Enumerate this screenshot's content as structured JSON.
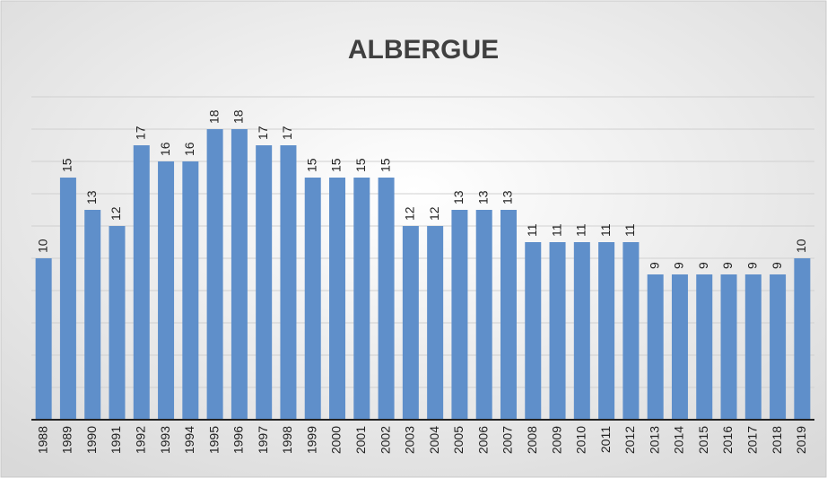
{
  "chart_data": {
    "type": "bar",
    "title": "ALBERGUE",
    "categories": [
      "1988",
      "1989",
      "1990",
      "1991",
      "1992",
      "1993",
      "1994",
      "1995",
      "1996",
      "1997",
      "1998",
      "1999",
      "2000",
      "2001",
      "2002",
      "2003",
      "2004",
      "2005",
      "2006",
      "2007",
      "2008",
      "2009",
      "2010",
      "2011",
      "2012",
      "2013",
      "2014",
      "2015",
      "2016",
      "2017",
      "2018",
      "2019"
    ],
    "values": [
      10,
      15,
      13,
      12,
      17,
      16,
      16,
      18,
      18,
      17,
      17,
      15,
      15,
      15,
      15,
      12,
      12,
      13,
      13,
      13,
      11,
      11,
      11,
      11,
      11,
      9,
      9,
      9,
      9,
      9,
      9,
      10
    ],
    "color": "#5f8fca",
    "ylim": [
      0,
      20
    ],
    "yticks": [
      0,
      2,
      4,
      6,
      8,
      10,
      12,
      14,
      16,
      18,
      20
    ],
    "grid": true
  }
}
